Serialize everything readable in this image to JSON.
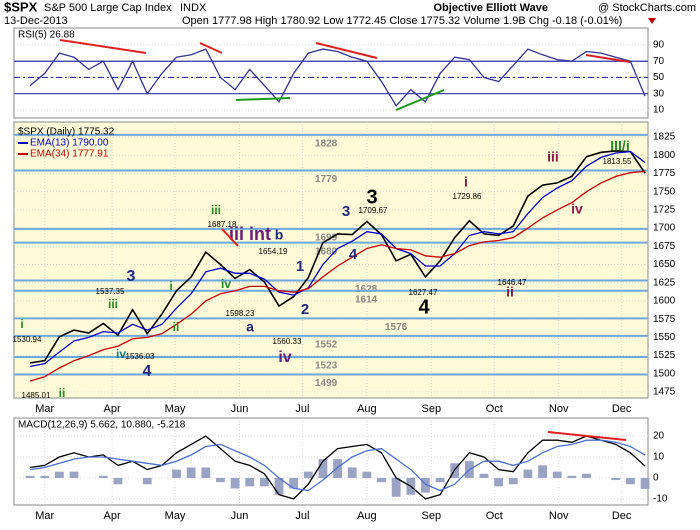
{
  "header": {
    "symbol": "$SPX",
    "name": "S&P 500 Large Cap Index",
    "exchange": "INDX",
    "date": "13-Dec-2013",
    "brand": "Objective Elliott Wave",
    "source": "@ StockCharts.com",
    "quote": "Open 1777.98  High 1780.92  Low 1772.45  Close 1775.32  Volume 1.9B  Chg -0.18 (-0.01%)"
  },
  "chart_data": [
    {
      "type": "line",
      "title": "RSI(5) 26.88",
      "x": [
        0,
        1,
        2,
        3,
        4,
        5,
        6,
        7,
        8,
        9,
        10,
        11,
        12,
        13,
        14,
        15,
        16,
        17,
        18,
        19,
        20,
        21,
        22,
        23,
        24,
        25,
        26,
        27,
        28,
        29,
        30,
        31,
        32,
        33,
        34,
        35,
        36,
        37,
        38,
        39,
        40,
        41,
        42
      ],
      "xlim": [
        -1.1,
        42.2
      ],
      "ylim": [
        0,
        111
      ],
      "yticks": [
        10,
        30,
        50,
        70,
        90
      ],
      "reference_lines": [
        {
          "value": 30,
          "style": "solid"
        },
        {
          "value": 50,
          "style": "dashed"
        },
        {
          "value": 70,
          "style": "solid"
        }
      ],
      "series": [
        {
          "color": "#333399",
          "values": [
            40,
            55,
            80,
            75,
            60,
            70,
            35,
            70,
            30,
            55,
            75,
            78,
            85,
            50,
            35,
            60,
            40,
            20,
            55,
            80,
            85,
            82,
            75,
            70,
            45,
            15,
            35,
            20,
            55,
            75,
            72,
            50,
            45,
            65,
            85,
            78,
            72,
            70,
            82,
            80,
            75,
            70,
            26.88
          ]
        }
      ]
    },
    {
      "type": "line",
      "x": [
        0,
        1,
        2,
        3,
        4,
        5,
        6,
        7,
        8,
        9,
        10,
        11,
        12,
        13,
        14,
        15,
        16,
        17,
        18,
        19,
        20,
        21,
        22,
        23,
        24,
        25,
        26,
        27,
        28,
        29,
        30,
        31,
        32,
        33,
        34,
        35,
        36,
        37,
        38,
        39,
        40,
        41,
        42
      ],
      "xlim": [
        -1.1,
        42.2
      ],
      "ylim": [
        1466.8,
        1845.6
      ],
      "yticks": [
        1475,
        1500,
        1525,
        1550,
        1575,
        1600,
        1625,
        1650,
        1675,
        1700,
        1725,
        1750,
        1775,
        1800,
        1825
      ],
      "xticks": [
        {
          "value": 1,
          "label": "Mar"
        },
        {
          "value": 5.6,
          "label": "Apr"
        },
        {
          "value": 9.9,
          "label": "May"
        },
        {
          "value": 14.3,
          "label": "Jun"
        },
        {
          "value": 18.6,
          "label": "Jul"
        },
        {
          "value": 23,
          "label": "Aug"
        },
        {
          "value": 27.4,
          "label": "Sep"
        },
        {
          "value": 31.7,
          "label": "Oct"
        },
        {
          "value": 36.1,
          "label": "Nov"
        },
        {
          "value": 40.4,
          "label": "Dec"
        }
      ],
      "levels": [
        1828,
        1779,
        1699,
        1680,
        1628,
        1614,
        1576,
        1552,
        1523,
        1499
      ],
      "level_color": "#6fa8dc",
      "series": [
        {
          "name": "$SPX (Daily) 1775.32",
          "color": "#000000",
          "values": [
            1515,
            1518,
            1551,
            1560,
            1556,
            1569,
            1553,
            1588,
            1555,
            1582,
            1614,
            1633,
            1667,
            1650,
            1631,
            1643,
            1626,
            1593,
            1606,
            1632,
            1680,
            1692,
            1691,
            1709,
            1691,
            1655,
            1664,
            1633,
            1655,
            1687,
            1710,
            1692,
            1690,
            1703,
            1744,
            1759,
            1762,
            1771,
            1798,
            1804,
            1806,
            1805,
            1775.32
          ]
        },
        {
          "name": "EMA(13) 1790.00",
          "color": "#0000cc",
          "values": [
            1510,
            1514,
            1530,
            1545,
            1550,
            1558,
            1556,
            1568,
            1560,
            1568,
            1590,
            1610,
            1640,
            1645,
            1638,
            1638,
            1630,
            1612,
            1608,
            1618,
            1650,
            1672,
            1682,
            1695,
            1692,
            1672,
            1665,
            1648,
            1648,
            1665,
            1690,
            1695,
            1692,
            1695,
            1720,
            1742,
            1755,
            1765,
            1785,
            1797,
            1803,
            1805,
            1790
          ]
        },
        {
          "name": "EMA(34) 1777.91",
          "color": "#cc0000",
          "values": [
            1490,
            1496,
            1508,
            1518,
            1525,
            1533,
            1538,
            1548,
            1550,
            1555,
            1568,
            1582,
            1600,
            1610,
            1614,
            1620,
            1620,
            1614,
            1612,
            1617,
            1633,
            1648,
            1660,
            1672,
            1677,
            1672,
            1670,
            1662,
            1660,
            1665,
            1676,
            1681,
            1683,
            1687,
            1700,
            1714,
            1725,
            1735,
            1750,
            1762,
            1771,
            1776,
            1777.91
          ]
        }
      ],
      "annotations": [
        {
          "text": "i",
          "color": "#228b22"
        },
        {
          "text": "1530.94",
          "color": "#000000"
        },
        {
          "text": "1485.01",
          "color": "#000000"
        },
        {
          "text": "ii",
          "color": "#228b22"
        },
        {
          "text": "iii",
          "color": "#228b22"
        },
        {
          "text": "1537.35",
          "color": "#000000"
        },
        {
          "text": "3",
          "color": "#1f2a80"
        },
        {
          "text": "iv",
          "color": "#1a7a7a"
        },
        {
          "text": "1536.03",
          "color": "#000000"
        },
        {
          "text": "4",
          "color": "#1f2a80"
        },
        {
          "text": "i",
          "color": "#228b22"
        },
        {
          "text": "ii",
          "color": "#228b22"
        },
        {
          "text": "iii",
          "color": "#228b22"
        },
        {
          "text": "1687.18",
          "color": "#000000"
        },
        {
          "text": "iii int",
          "color": "#6a1b7a"
        },
        {
          "text": "b",
          "color": "#1f2a80"
        },
        {
          "text": "1654.19",
          "color": "#000000"
        },
        {
          "text": "iv",
          "color": "#228b22"
        },
        {
          "text": "1598.23",
          "color": "#000000"
        },
        {
          "text": "a",
          "color": "#1f2a80"
        },
        {
          "text": "1560.33",
          "color": "#000000"
        },
        {
          "text": "iv",
          "color": "#6a1b7a"
        },
        {
          "text": "1",
          "color": "#1f2a80"
        },
        {
          "text": "2",
          "color": "#1f2a80"
        },
        {
          "text": "3",
          "color": "#000000"
        },
        {
          "text": "3",
          "color": "#1f2a80"
        },
        {
          "text": "1709.67",
          "color": "#000000"
        },
        {
          "text": "4",
          "color": "#1f2a80"
        },
        {
          "text": "4",
          "color": "#000000"
        },
        {
          "text": "1627.47",
          "color": "#000000"
        },
        {
          "text": "i",
          "color": "#8b1a4a"
        },
        {
          "text": "1729.86",
          "color": "#000000"
        },
        {
          "text": "1646.47",
          "color": "#000000"
        },
        {
          "text": "ii",
          "color": "#8b1a4a"
        },
        {
          "text": "iii",
          "color": "#8b1a4a"
        },
        {
          "text": "iv",
          "color": "#8b1a4a"
        },
        {
          "text": "1813.55",
          "color": "#000000"
        },
        {
          "text": "III/i",
          "color": "#228b22"
        }
      ]
    },
    {
      "type": "line",
      "title": "MACD(12,26,9) 5.662, 10.880, -5.218",
      "x": [
        0,
        1,
        2,
        3,
        4,
        5,
        6,
        7,
        8,
        9,
        10,
        11,
        12,
        13,
        14,
        15,
        16,
        17,
        18,
        19,
        20,
        21,
        22,
        23,
        24,
        25,
        26,
        27,
        28,
        29,
        30,
        31,
        32,
        33,
        34,
        35,
        36,
        37,
        38,
        39,
        40,
        41,
        42
      ],
      "xlim": [
        -1.1,
        42.2
      ],
      "ylim": [
        -12.9,
        28.6
      ],
      "yticks": [
        -10,
        0,
        10,
        20
      ],
      "xticks": [
        {
          "value": 1,
          "label": "Mar"
        },
        {
          "value": 5.6,
          "label": "Apr"
        },
        {
          "value": 9.9,
          "label": "May"
        },
        {
          "value": 14.3,
          "label": "Jun"
        },
        {
          "value": 18.6,
          "label": "Jul"
        },
        {
          "value": 23,
          "label": "Aug"
        },
        {
          "value": 27.4,
          "label": "Sep"
        },
        {
          "value": 31.7,
          "label": "Oct"
        },
        {
          "value": 36.1,
          "label": "Nov"
        },
        {
          "value": 40.4,
          "label": "Dec"
        }
      ],
      "series": [
        {
          "style": "bar",
          "color": "#9aa3c4",
          "values": [
            1,
            1,
            3,
            3,
            0,
            1,
            -3,
            0,
            -3,
            0,
            4,
            5,
            5,
            -2,
            -5,
            -4,
            -4,
            -8,
            -5,
            3,
            9,
            9,
            5,
            3,
            -2,
            -9,
            -8,
            -7,
            -2,
            7,
            8,
            2,
            -4,
            -3,
            4,
            6,
            3,
            1,
            2,
            0,
            -1,
            -3,
            -5.218
          ]
        },
        {
          "color": "#000000",
          "values": [
            5,
            6,
            10,
            12,
            10,
            11,
            6,
            8,
            4,
            6,
            12,
            16,
            20,
            14,
            8,
            6,
            2,
            -8,
            -10,
            -3,
            8,
            14,
            15,
            16,
            12,
            0,
            -4,
            -10,
            -8,
            4,
            12,
            10,
            4,
            3,
            12,
            18,
            18,
            17,
            20,
            18,
            16,
            12,
            5.662
          ]
        },
        {
          "color": "#4a6fd0",
          "values": [
            4,
            5,
            7,
            9,
            10,
            10,
            9,
            8,
            7,
            6,
            8,
            11,
            15,
            16,
            13,
            10,
            6,
            0,
            -5,
            -6,
            -1,
            5,
            10,
            13,
            14,
            9,
            4,
            -3,
            -6,
            -3,
            4,
            8,
            8,
            6,
            8,
            12,
            15,
            16,
            18,
            18,
            17,
            15,
            10.88
          ]
        }
      ]
    }
  ]
}
